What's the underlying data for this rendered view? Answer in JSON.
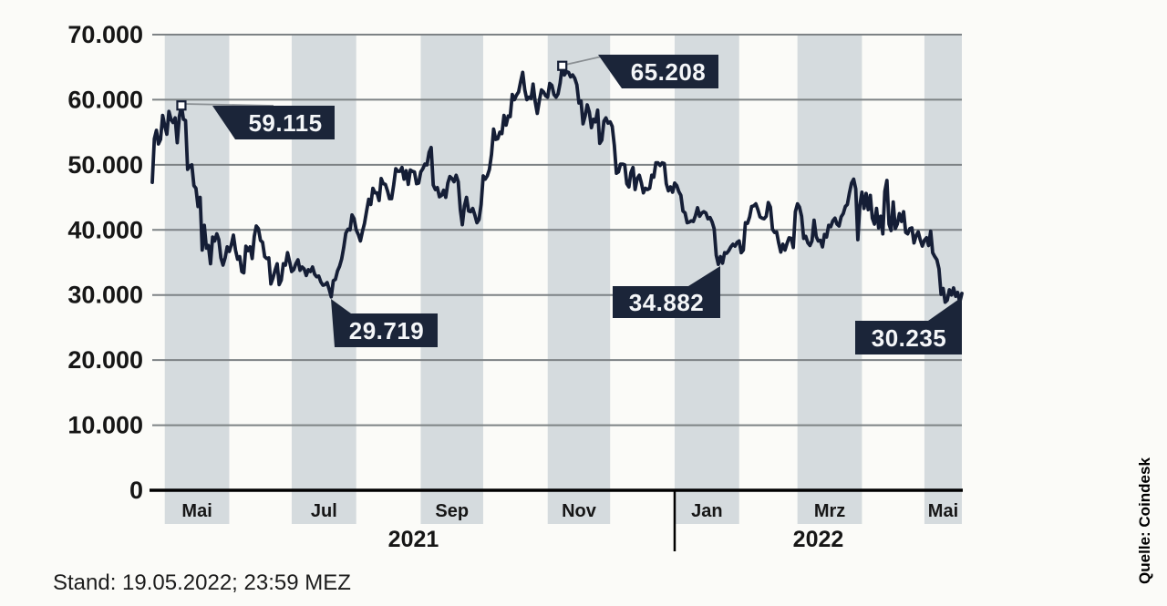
{
  "status_label": "Stand: 19.05.2022; 23:59 MEZ",
  "source_label": "Quelle: Coindesk",
  "chart_data": {
    "type": "line",
    "title": "",
    "x_start_date": "2021-04-25",
    "x_end_date": "2022-05-19",
    "x_unit": "days",
    "ylim": [
      0,
      70000
    ],
    "grid": true,
    "y_ticks": [
      {
        "label": "70.000",
        "value": 70000
      },
      {
        "label": "60.000",
        "value": 60000
      },
      {
        "label": "50.000",
        "value": 50000
      },
      {
        "label": "40.000",
        "value": 40000
      },
      {
        "label": "30.000",
        "value": 30000
      },
      {
        "label": "20.000",
        "value": 20000
      },
      {
        "label": "10.000",
        "value": 10000
      },
      {
        "label": "0",
        "value": 0
      }
    ],
    "month_bands": [
      {
        "label": "Mai",
        "start_day": 6,
        "end_day": 37
      },
      {
        "label": "Jul",
        "start_day": 67,
        "end_day": 98
      },
      {
        "label": "Sep",
        "start_day": 129,
        "end_day": 159
      },
      {
        "label": "Nov",
        "start_day": 190,
        "end_day": 220
      },
      {
        "label": "Jan",
        "start_day": 251,
        "end_day": 282
      },
      {
        "label": "Mrz",
        "start_day": 310,
        "end_day": 341
      },
      {
        "label": "Mai",
        "start_day": 371,
        "end_day": 389
      }
    ],
    "years": [
      {
        "label": "2021",
        "start_day": 0,
        "end_day": 251
      },
      {
        "label": "2022",
        "start_day": 251,
        "end_day": 389
      }
    ],
    "values_unit_thousands": true,
    "values": [
      47.3,
      54.0,
      55.3,
      53.2,
      53.9,
      57.6,
      56.0,
      54.7,
      58.2,
      57.0,
      56.5,
      57.2,
      53.4,
      57.4,
      59.115,
      57.0,
      56.8,
      49.3,
      49.8,
      50.0,
      46.8,
      46.4,
      43.6,
      45.0,
      36.9,
      40.7,
      37.2,
      37.6,
      34.8,
      38.9,
      38.3,
      39.4,
      38.5,
      35.7,
      34.6,
      35.7,
      37.4,
      36.7,
      37.7,
      39.2,
      36.9,
      35.5,
      35.9,
      33.6,
      33.4,
      37.5,
      36.8,
      37.4,
      35.6,
      39.0,
      40.6,
      40.2,
      38.4,
      38.1,
      35.9,
      35.6,
      35.7,
      31.7,
      32.6,
      33.8,
      34.8,
      31.6,
      32.3,
      34.8,
      34.6,
      36.5,
      35.1,
      33.6,
      33.9,
      34.8,
      35.4,
      33.8,
      34.3,
      34.0,
      33.0,
      33.9,
      33.6,
      34.3,
      33.2,
      32.8,
      32.9,
      32.0,
      31.5,
      31.6,
      31.9,
      30.9,
      29.719,
      32.2,
      32.4,
      33.7,
      34.4,
      35.5,
      37.3,
      39.5,
      40.1,
      40.0,
      42.3,
      41.7,
      40.0,
      39.3,
      38.3,
      39.8,
      41.0,
      42.9,
      44.7,
      43.9,
      46.4,
      45.7,
      45.7,
      44.5,
      47.9,
      47.1,
      47.0,
      46.0,
      44.8,
      44.8,
      46.9,
      49.4,
      49.0,
      49.0,
      49.6,
      47.8,
      49.1,
      47.0,
      49.2,
      49.0,
      48.9,
      47.1,
      47.2,
      48.9,
      49.4,
      50.1,
      50.0,
      51.9,
      52.66,
      46.9,
      46.2,
      46.5,
      45.1,
      45.3,
      46.1,
      45.0,
      47.2,
      48.2,
      47.9,
      47.4,
      48.4,
      47.4,
      43.1,
      40.8,
      43.7,
      45.0,
      42.9,
      42.8,
      43.3,
      42.3,
      41.1,
      41.6,
      43.9,
      48.3,
      47.8,
      48.3,
      49.3,
      51.6,
      55.5,
      53.9,
      54.0,
      55.0,
      54.8,
      57.6,
      56.1,
      57.5,
      57.4,
      60.8,
      60.0,
      60.7,
      61.2,
      62.8,
      64.2,
      61.5,
      60.0,
      60.4,
      60.2,
      62.4,
      59.7,
      57.9,
      59.9,
      61.5,
      61.2,
      60.6,
      60.4,
      62.5,
      62.2,
      60.8,
      60.4,
      60.9,
      62.6,
      65.208,
      63.8,
      64.3,
      64.2,
      63.5,
      63.8,
      63.3,
      62.3,
      59.5,
      59.8,
      56.3,
      57.5,
      59.2,
      58.1,
      55.7,
      57.0,
      56.6,
      58.4,
      53.3,
      53.8,
      56.7,
      57.2,
      56.4,
      56.6,
      55.9,
      53.0,
      48.7,
      48.9,
      50.1,
      50.1,
      50.0,
      47.1,
      46.6,
      48.8,
      49.6,
      46.2,
      47.9,
      48.4,
      47.2,
      45.7,
      46.4,
      46.2,
      46.4,
      48.4,
      48.1,
      50.3,
      50.3,
      49.9,
      50.3,
      50.2,
      47.1,
      46.0,
      46.6,
      45.8,
      47.2,
      46.8,
      45.9,
      45.3,
      42.9,
      42.6,
      41.1,
      41.2,
      41.4,
      41.3,
      42.2,
      43.4,
      42.1,
      42.6,
      42.8,
      42.6,
      41.7,
      41.9,
      41.2,
      40.2,
      36.1,
      34.7,
      35.9,
      34.882,
      36.5,
      36.4,
      36.8,
      37.4,
      37.8,
      37.5,
      38.1,
      38.3,
      36.5,
      36.9,
      41.1,
      41.0,
      42.0,
      43.6,
      43.7,
      44.0,
      43.1,
      42.0,
      41.8,
      41.7,
      42.1,
      44.2,
      43.5,
      40.1,
      39.6,
      39.7,
      38.0,
      36.6,
      37.8,
      36.9,
      37.9,
      38.8,
      38.7,
      37.3,
      42.8,
      44.0,
      43.5,
      42.1,
      38.7,
      39.0,
      38.0,
      37.6,
      38.3,
      41.5,
      39.0,
      38.3,
      38.4,
      37.4,
      39.3,
      38.9,
      40.7,
      40.5,
      41.4,
      41.8,
      40.9,
      40.6,
      42.0,
      42.5,
      43.6,
      43.9,
      45.7,
      47.2,
      47.8,
      46.3,
      38.5,
      43.8,
      45.8,
      43.3,
      45.6,
      43.1,
      45.3,
      41.8,
      40.9,
      43.3,
      40.3,
      42.1,
      39.4,
      45.9,
      47.6,
      40.9,
      39.9,
      44.3,
      40.2,
      40.9,
      42.5,
      41.3,
      42.8,
      39.6,
      39.4,
      40.2,
      40.3,
      38.0,
      39.1,
      39.7,
      38.5,
      37.5,
      38.4,
      38.8,
      37.6,
      39.8,
      36.5,
      35.9,
      35.4,
      34.0,
      30.1,
      31.0,
      28.9,
      29.2,
      30.8,
      30.0,
      31.1,
      29.8,
      30.4,
      28.9,
      30.235
    ],
    "annotations": [
      {
        "label": "59.115",
        "day": 14,
        "value": 59.115,
        "marker": true
      },
      {
        "label": "65.208",
        "day": 197,
        "value": 65.208,
        "marker": true
      },
      {
        "label": "29.719",
        "day": 86,
        "value": 29.719,
        "marker": false
      },
      {
        "label": "34.882",
        "day": 274,
        "value": 34.882,
        "marker": false
      },
      {
        "label": "30.235",
        "day": 389,
        "value": 30.235,
        "marker": false
      }
    ],
    "legend_position": "none",
    "colors": {
      "line": "#151e36",
      "annotation_box": "#1b2539",
      "annotation_text": "#f4f6f8",
      "month_band": "#d5dbde",
      "gridline": "#7d8285",
      "axis": "#000000",
      "text": "#161616",
      "marker_fill": "#ffffff",
      "background": "#fbfbf8"
    }
  }
}
